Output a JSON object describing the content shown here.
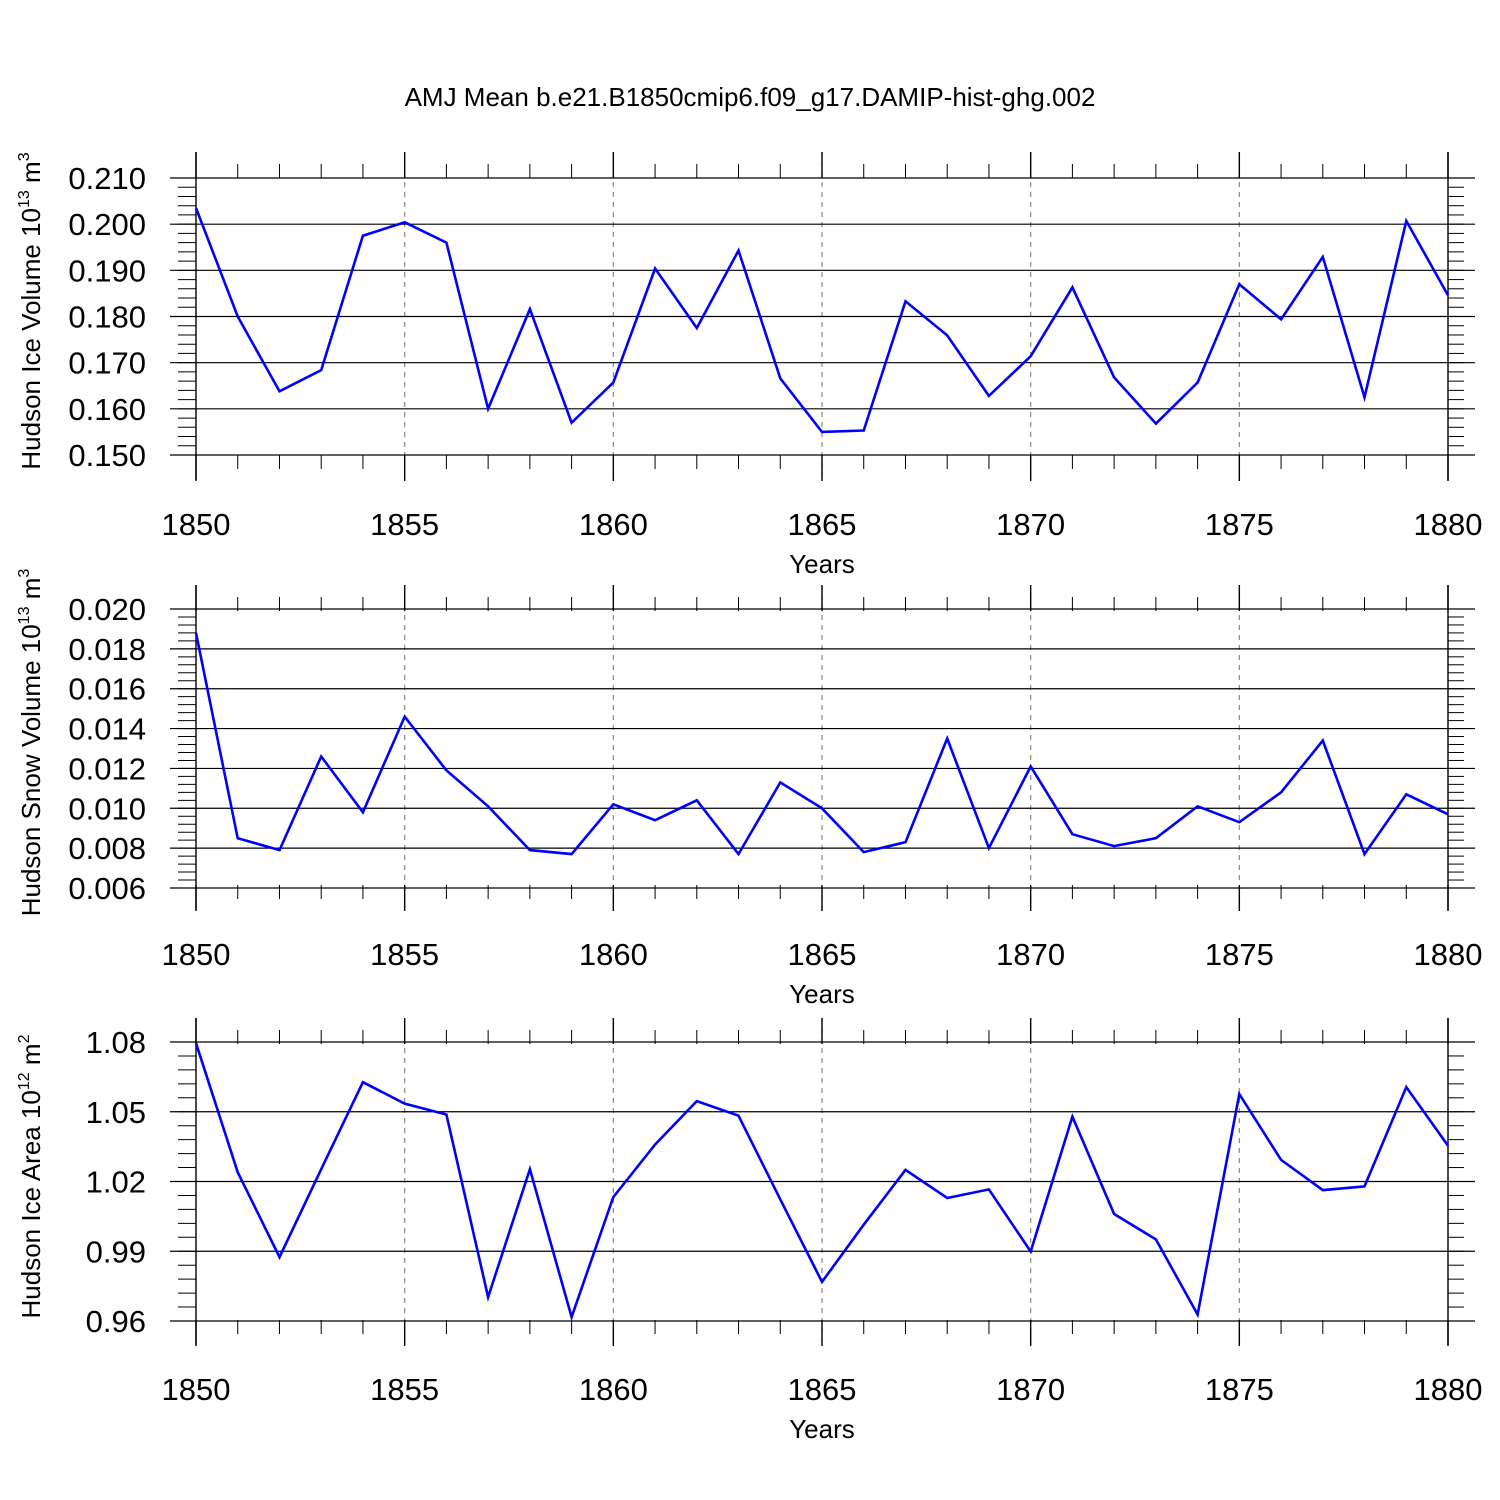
{
  "title": "AMJ Mean b.e21.B1850cmip6.f09_g17.DAMIP-hist-ghg.002",
  "colors": {
    "line": "#0000ff",
    "axis": "#000000",
    "grid": "#888888"
  },
  "chart_data": [
    {
      "type": "line",
      "ylabel": "Hudson Ice Volume 10",
      "ylabel_exp": "13",
      "ylabel_unit": "m",
      "ylabel_unit_exp": "3",
      "xlabel": "Years",
      "xlim": [
        1850,
        1880
      ],
      "ylim": [
        0.15,
        0.21
      ],
      "yticks": [
        0.15,
        0.16,
        0.17,
        0.18,
        0.19,
        0.2,
        0.21
      ],
      "ytick_labels": [
        "0.150",
        "0.160",
        "0.170",
        "0.180",
        "0.190",
        "0.200",
        "0.210"
      ],
      "xticks": [
        1850,
        1855,
        1860,
        1865,
        1870,
        1875,
        1880
      ],
      "xtick_labels": [
        "1850",
        "1855",
        "1860",
        "1865",
        "1870",
        "1875",
        "1880"
      ],
      "y_minor_step": 0.002,
      "grid_x": true,
      "x": [
        1850,
        1851,
        1852,
        1853,
        1854,
        1855,
        1856,
        1857,
        1858,
        1859,
        1860,
        1861,
        1862,
        1863,
        1864,
        1865,
        1866,
        1867,
        1868,
        1869,
        1870,
        1871,
        1872,
        1873,
        1874,
        1875,
        1876,
        1877,
        1878,
        1879,
        1880
      ],
      "values": [
        0.2035,
        0.18,
        0.1638,
        0.1684,
        0.1975,
        0.2004,
        0.196,
        0.16,
        0.1816,
        0.157,
        0.1657,
        0.1904,
        0.1775,
        0.1943,
        0.1666,
        0.155,
        0.1553,
        0.1833,
        0.1759,
        0.1628,
        0.1714,
        0.1863,
        0.1668,
        0.1568,
        0.1657,
        0.187,
        0.1794,
        0.1929,
        0.1625,
        0.2007,
        0.1846
      ]
    },
    {
      "type": "line",
      "ylabel": "Hudson Snow Volume 10",
      "ylabel_exp": "13",
      "ylabel_unit": "m",
      "ylabel_unit_exp": "3",
      "xlabel": "Years",
      "xlim": [
        1850,
        1880
      ],
      "ylim": [
        0.006,
        0.02
      ],
      "yticks": [
        0.006,
        0.008,
        0.01,
        0.012,
        0.014,
        0.016,
        0.018,
        0.02
      ],
      "ytick_labels": [
        "0.006",
        "0.008",
        "0.010",
        "0.012",
        "0.014",
        "0.016",
        "0.018",
        "0.020"
      ],
      "xticks": [
        1850,
        1855,
        1860,
        1865,
        1870,
        1875,
        1880
      ],
      "xtick_labels": [
        "1850",
        "1855",
        "1860",
        "1865",
        "1870",
        "1875",
        "1880"
      ],
      "y_minor_step": 0.0004,
      "grid_x": true,
      "x": [
        1850,
        1851,
        1852,
        1853,
        1854,
        1855,
        1856,
        1857,
        1858,
        1859,
        1860,
        1861,
        1862,
        1863,
        1864,
        1865,
        1866,
        1867,
        1868,
        1869,
        1870,
        1871,
        1872,
        1873,
        1874,
        1875,
        1876,
        1877,
        1878,
        1879,
        1880
      ],
      "values": [
        0.0188,
        0.0085,
        0.0079,
        0.0126,
        0.0098,
        0.0146,
        0.0119,
        0.0101,
        0.0079,
        0.0077,
        0.0102,
        0.0094,
        0.0104,
        0.0077,
        0.0113,
        0.01,
        0.0078,
        0.0083,
        0.0135,
        0.008,
        0.0121,
        0.0087,
        0.0081,
        0.0085,
        0.0101,
        0.0093,
        0.0108,
        0.0134,
        0.0077,
        0.0107,
        0.0097
      ]
    },
    {
      "type": "line",
      "ylabel": "Hudson Ice Area 10",
      "ylabel_exp": "12",
      "ylabel_unit": "m",
      "ylabel_unit_exp": "2",
      "xlabel": "Years",
      "xlim": [
        1850,
        1880
      ],
      "ylim": [
        0.96,
        1.08
      ],
      "yticks": [
        0.96,
        0.99,
        1.02,
        1.05,
        1.08
      ],
      "ytick_labels": [
        "0.96",
        "0.99",
        "1.02",
        "1.05",
        "1.08"
      ],
      "xticks": [
        1850,
        1855,
        1860,
        1865,
        1870,
        1875,
        1880
      ],
      "xtick_labels": [
        "1850",
        "1855",
        "1860",
        "1865",
        "1870",
        "1875",
        "1880"
      ],
      "y_minor_step": 0.006,
      "grid_x": true,
      "x": [
        1850,
        1851,
        1852,
        1853,
        1854,
        1855,
        1856,
        1857,
        1858,
        1859,
        1860,
        1861,
        1862,
        1863,
        1864,
        1865,
        1866,
        1867,
        1868,
        1869,
        1870,
        1871,
        1872,
        1873,
        1874,
        1875,
        1876,
        1877,
        1878,
        1879,
        1880
      ],
      "values": [
        1.0795,
        1.024,
        0.9875,
        1.0253,
        1.0627,
        1.0535,
        1.0488,
        0.9703,
        1.0253,
        0.9617,
        1.0133,
        1.0359,
        1.0546,
        1.0483,
        1.0123,
        0.9768,
        1.0014,
        1.025,
        1.0129,
        1.0166,
        0.9899,
        1.0479,
        1.006,
        0.9951,
        0.9628,
        1.0576,
        1.0293,
        1.0163,
        1.0179,
        1.0606,
        1.0354
      ]
    }
  ]
}
